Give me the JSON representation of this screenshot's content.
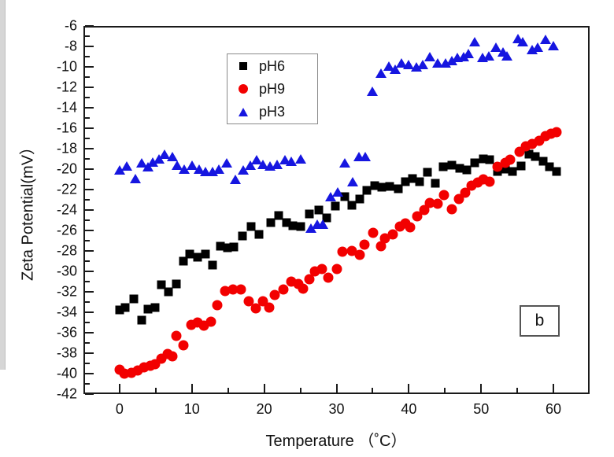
{
  "figure": {
    "y_axis_title": "Zeta Potential(mV）",
    "x_axis_title": "Temperature （˚C）",
    "panel_label": "b"
  },
  "legend": {
    "position": "upper-left-inside",
    "items": [
      {
        "label": "pH6",
        "marker": "square",
        "color": "#000000"
      },
      {
        "label": "pH9",
        "marker": "circle",
        "color": "#f20000"
      },
      {
        "label": "pH3",
        "marker": "triangle",
        "color": "#1616e0"
      }
    ]
  },
  "chart_data": {
    "type": "scatter",
    "title": "",
    "xlabel": "Temperature （˚C）",
    "ylabel": "Zeta Potential(mV）",
    "xlim": [
      -5,
      65
    ],
    "ylim": [
      -42,
      -6
    ],
    "grid": false,
    "x_tick_labels": [
      "0",
      "10",
      "20",
      "30",
      "40",
      "50",
      "60"
    ],
    "x_major_ticks": [
      0,
      10,
      20,
      30,
      40,
      50,
      60
    ],
    "x_minor_ticks": [
      5,
      15,
      25,
      35,
      45,
      55
    ],
    "y_tick_labels": [
      "-6",
      "-8",
      "-10",
      "-12",
      "-14",
      "-16",
      "-18",
      "-20",
      "-22",
      "-24",
      "-26",
      "-28",
      "-30",
      "-32",
      "-34",
      "-36",
      "-38",
      "-40",
      "-42"
    ],
    "y_major_ticks": [
      -6,
      -8,
      -10,
      -12,
      -14,
      -16,
      -18,
      -20,
      -22,
      -24,
      -26,
      -28,
      -30,
      -32,
      -34,
      -36,
      -38,
      -40,
      -42
    ],
    "y_minor_ticks": [
      -7,
      -9,
      -11,
      -13,
      -15,
      -17,
      -19,
      -21,
      -23,
      -25,
      -27,
      -29,
      -31,
      -33,
      -35,
      -37,
      -39,
      -41
    ],
    "series": [
      {
        "name": "pH6",
        "marker": "square",
        "color": "#000000",
        "points": [
          [
            0,
            -33.8
          ],
          [
            0.8,
            -33.5
          ],
          [
            2,
            -32.7
          ],
          [
            3.1,
            -34.8
          ],
          [
            3.9,
            -33.7
          ],
          [
            4.9,
            -33.5
          ],
          [
            5.8,
            -31.3
          ],
          [
            6.8,
            -32
          ],
          [
            7.9,
            -31.2
          ],
          [
            8.8,
            -29
          ],
          [
            9.7,
            -28.3
          ],
          [
            10.8,
            -28.6
          ],
          [
            11.9,
            -28.3
          ],
          [
            12.8,
            -29.4
          ],
          [
            13.9,
            -27.5
          ],
          [
            14.9,
            -27.7
          ],
          [
            15.8,
            -27.6
          ],
          [
            17,
            -26.5
          ],
          [
            18.2,
            -25.6
          ],
          [
            19.3,
            -26.4
          ],
          [
            20.9,
            -25.2
          ],
          [
            22,
            -24.5
          ],
          [
            23.1,
            -25.2
          ],
          [
            24,
            -25.5
          ],
          [
            25.1,
            -25.6
          ],
          [
            26.2,
            -24.4
          ],
          [
            27.5,
            -24
          ],
          [
            28.6,
            -24.8
          ],
          [
            29.8,
            -23.6
          ],
          [
            31.1,
            -22.7
          ],
          [
            32.1,
            -23.5
          ],
          [
            33.2,
            -22.9
          ],
          [
            34.2,
            -22.1
          ],
          [
            35.3,
            -21.6
          ],
          [
            36.3,
            -21.8
          ],
          [
            37.4,
            -21.7
          ],
          [
            38.5,
            -21.9
          ],
          [
            39.5,
            -21.2
          ],
          [
            40.5,
            -20.9
          ],
          [
            41.5,
            -21.2
          ],
          [
            42.6,
            -20.3
          ],
          [
            43.7,
            -21.4
          ],
          [
            44.8,
            -19.8
          ],
          [
            45.9,
            -19.6
          ],
          [
            47,
            -19.9
          ],
          [
            48,
            -20.1
          ],
          [
            49.1,
            -19.4
          ],
          [
            50.3,
            -19
          ],
          [
            51.2,
            -19.1
          ],
          [
            52.3,
            -20.2
          ],
          [
            53.4,
            -20
          ],
          [
            54.3,
            -20.2
          ],
          [
            55.5,
            -19.7
          ],
          [
            56.6,
            -18.5
          ],
          [
            57.5,
            -18.8
          ],
          [
            58.6,
            -19.2
          ],
          [
            59.5,
            -19.8
          ],
          [
            60.4,
            -20.2
          ]
        ]
      },
      {
        "name": "pH9",
        "marker": "circle",
        "color": "#f20000",
        "points": [
          [
            0,
            -39.6
          ],
          [
            0.7,
            -40
          ],
          [
            1.6,
            -39.9
          ],
          [
            2.5,
            -39.7
          ],
          [
            3.4,
            -39.4
          ],
          [
            4.2,
            -39.2
          ],
          [
            4.9,
            -39.1
          ],
          [
            5.8,
            -38.5
          ],
          [
            6.7,
            -38.1
          ],
          [
            7.3,
            -38.3
          ],
          [
            7.9,
            -36.3
          ],
          [
            8.8,
            -37.2
          ],
          [
            9.9,
            -35.2
          ],
          [
            10.8,
            -35
          ],
          [
            11.7,
            -35.3
          ],
          [
            12.6,
            -34.9
          ],
          [
            13.5,
            -33.3
          ],
          [
            14.6,
            -31.9
          ],
          [
            15.7,
            -31.8
          ],
          [
            16.8,
            -31.8
          ],
          [
            17.9,
            -32.9
          ],
          [
            18.8,
            -33.6
          ],
          [
            19.8,
            -32.9
          ],
          [
            20.7,
            -33.5
          ],
          [
            21.5,
            -32.3
          ],
          [
            22.6,
            -31.8
          ],
          [
            23.7,
            -31
          ],
          [
            24.7,
            -31.2
          ],
          [
            25.4,
            -31.7
          ],
          [
            26.2,
            -30.8
          ],
          [
            27,
            -30
          ],
          [
            28,
            -29.8
          ],
          [
            28.9,
            -30.6
          ],
          [
            30,
            -29.8
          ],
          [
            30.8,
            -28.1
          ],
          [
            32.1,
            -28
          ],
          [
            33.2,
            -28.4
          ],
          [
            33.9,
            -27.4
          ],
          [
            35.1,
            -26.2
          ],
          [
            36.1,
            -27.5
          ],
          [
            36.7,
            -26.8
          ],
          [
            37.8,
            -26.4
          ],
          [
            38.8,
            -25.6
          ],
          [
            39.5,
            -25.3
          ],
          [
            40.2,
            -25.7
          ],
          [
            41.2,
            -24.6
          ],
          [
            42.1,
            -24
          ],
          [
            42.9,
            -23.3
          ],
          [
            44,
            -23.4
          ],
          [
            44.9,
            -22.5
          ],
          [
            46,
            -23.9
          ],
          [
            46.9,
            -22.9
          ],
          [
            47.8,
            -22.3
          ],
          [
            48.7,
            -21.6
          ],
          [
            49.5,
            -21.3
          ],
          [
            50.3,
            -21
          ],
          [
            51.2,
            -21.2
          ],
          [
            52.3,
            -19.8
          ],
          [
            53.3,
            -19.4
          ],
          [
            54,
            -19.1
          ],
          [
            55.3,
            -18.3
          ],
          [
            56.2,
            -17.8
          ],
          [
            57.1,
            -17.5
          ],
          [
            58,
            -17.2
          ],
          [
            58.9,
            -16.8
          ],
          [
            59.7,
            -16.5
          ],
          [
            60.4,
            -16.4
          ]
        ]
      },
      {
        "name": "pH3",
        "marker": "triangle",
        "color": "#1616e0",
        "points": [
          [
            0,
            -20.1
          ],
          [
            1,
            -19.7
          ],
          [
            2.2,
            -20.9
          ],
          [
            3.1,
            -19.4
          ],
          [
            3.9,
            -19.8
          ],
          [
            4.6,
            -19.3
          ],
          [
            5.4,
            -19
          ],
          [
            6.2,
            -18.5
          ],
          [
            7.3,
            -18.8
          ],
          [
            8,
            -19.6
          ],
          [
            8.9,
            -20
          ],
          [
            10,
            -19.6
          ],
          [
            11,
            -20
          ],
          [
            11.9,
            -20.2
          ],
          [
            12.8,
            -20.2
          ],
          [
            13.7,
            -20
          ],
          [
            14.8,
            -19.4
          ],
          [
            16,
            -21
          ],
          [
            17.1,
            -20.1
          ],
          [
            18.1,
            -19.6
          ],
          [
            19,
            -19.1
          ],
          [
            19.8,
            -19.5
          ],
          [
            20.8,
            -19.7
          ],
          [
            21.8,
            -19.5
          ],
          [
            22.9,
            -19.1
          ],
          [
            23.7,
            -19.2
          ],
          [
            25.1,
            -19
          ],
          [
            26.5,
            -25.8
          ],
          [
            27.3,
            -25.4
          ],
          [
            28.1,
            -25.4
          ],
          [
            29.2,
            -22.7
          ],
          [
            30.2,
            -22.2
          ],
          [
            31.1,
            -19.4
          ],
          [
            32.2,
            -21.2
          ],
          [
            33.1,
            -18.8
          ],
          [
            34,
            -18.8
          ],
          [
            34.9,
            -12.4
          ],
          [
            36.2,
            -10.6
          ],
          [
            37.2,
            -9.9
          ],
          [
            38.1,
            -10.2
          ],
          [
            39,
            -9.6
          ],
          [
            40,
            -9.8
          ],
          [
            41.1,
            -10
          ],
          [
            41.9,
            -9.8
          ],
          [
            42.9,
            -9
          ],
          [
            44,
            -9.6
          ],
          [
            45.1,
            -9.6
          ],
          [
            46,
            -9.4
          ],
          [
            46.7,
            -9.1
          ],
          [
            47.6,
            -9
          ],
          [
            48.2,
            -8.7
          ],
          [
            49.1,
            -7.5
          ],
          [
            50.2,
            -9.1
          ],
          [
            51.1,
            -8.9
          ],
          [
            52,
            -8.1
          ],
          [
            53,
            -8.5
          ],
          [
            53.6,
            -8.9
          ],
          [
            55.1,
            -7.2
          ],
          [
            55.8,
            -7.5
          ],
          [
            57.1,
            -8.3
          ],
          [
            57.8,
            -8.1
          ],
          [
            58.9,
            -7.3
          ],
          [
            60,
            -7.9
          ]
        ]
      }
    ]
  }
}
